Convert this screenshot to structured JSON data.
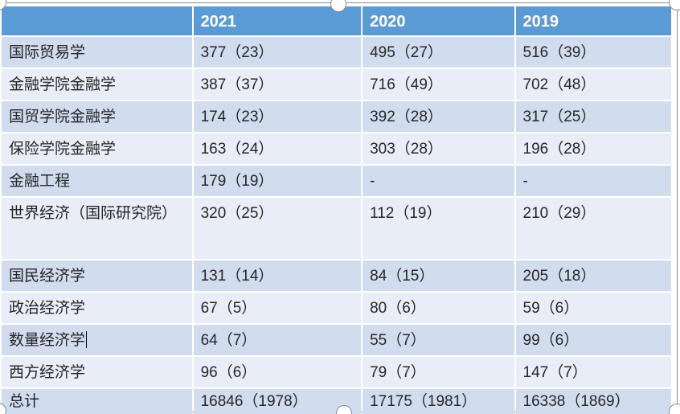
{
  "table": {
    "columns": [
      "",
      "2021",
      "2020",
      "2019"
    ],
    "rows": [
      {
        "label": "国际贸易学",
        "values": [
          "377（23）",
          "495（27）",
          "516（39）"
        ]
      },
      {
        "label": "金融学院金融学",
        "values": [
          "387（37）",
          "716（49）",
          "702（48）"
        ]
      },
      {
        "label": "国贸学院金融学",
        "values": [
          "174（23）",
          "392（28）",
          "317（25）"
        ]
      },
      {
        "label": "保险学院金融学",
        "values": [
          "163（24）",
          "303（28）",
          "196（28）"
        ]
      },
      {
        "label": "金融工程",
        "values": [
          "179（19）",
          "-",
          "-"
        ]
      },
      {
        "label": "世界经济（国际研究院）",
        "values": [
          "320（25）",
          "112（19）",
          "210（29）"
        ]
      },
      {
        "label": "国民经济学",
        "values": [
          "131（14）",
          "84（15）",
          "205（18）"
        ]
      },
      {
        "label": "政治经济学",
        "values": [
          "67（5）",
          "80（6）",
          "59（6）"
        ]
      },
      {
        "label": "数量经济学",
        "values": [
          "64（7）",
          "55（7）",
          "99（6）"
        ],
        "caret": true
      },
      {
        "label": "西方经济学",
        "values": [
          "96（6）",
          "79（7）",
          "147（7）"
        ]
      },
      {
        "label": "总计",
        "values": [
          "16846（1978）",
          "17175（1981）",
          "16338（1869）"
        ]
      }
    ]
  },
  "colors": {
    "header_bg": "#5B9BD5",
    "header_text": "#FFFFFF",
    "row_band_a": "#D2DCEF",
    "row_band_b": "#E9EDF7",
    "body_text": "#262626",
    "selection_outline": "#8C8C8C",
    "handle_fill": "#FFFFFF"
  }
}
